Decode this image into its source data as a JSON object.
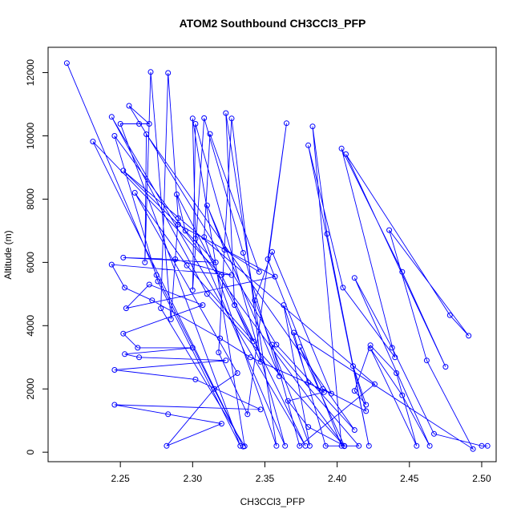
{
  "chart_data": {
    "type": "line",
    "title": "ATOM2 Southbound CH3CCl3_PFP",
    "xlabel": "CH3CCl3_PFP",
    "ylabel": "Altitude (m)",
    "xlim": [
      2.2,
      2.51
    ],
    "ylim": [
      -300,
      12800
    ],
    "xticks": [
      2.25,
      2.3,
      2.35,
      2.4,
      2.45,
      2.5
    ],
    "xtick_labels": [
      "2.25",
      "2.30",
      "2.35",
      "2.40",
      "2.45",
      "2.50"
    ],
    "yticks": [
      0,
      2000,
      4000,
      6000,
      8000,
      10000,
      12000
    ],
    "ytick_labels": [
      "0",
      "2000",
      "4000",
      "6000",
      "8000",
      "10000",
      "12000"
    ],
    "color": "#0000ff",
    "grid": false,
    "points": [
      [
        2.213,
        12300
      ],
      [
        2.275,
        5600
      ],
      [
        2.335,
        180
      ],
      [
        2.231,
        9820
      ],
      [
        2.32,
        5600
      ],
      [
        2.378,
        200
      ],
      [
        2.244,
        10600
      ],
      [
        2.31,
        5000
      ],
      [
        2.405,
        190
      ],
      [
        2.246,
        10000
      ],
      [
        2.276,
        5400
      ],
      [
        2.333,
        200
      ],
      [
        2.25,
        10380
      ],
      [
        2.263,
        10380
      ],
      [
        2.27,
        10380
      ],
      [
        2.256,
        10950
      ],
      [
        2.358,
        3400
      ],
      [
        2.412,
        700
      ],
      [
        2.268,
        10050
      ],
      [
        2.267,
        6000
      ],
      [
        2.271,
        12020
      ],
      [
        2.285,
        4200
      ],
      [
        2.29,
        7400
      ],
      [
        2.283,
        11990
      ],
      [
        2.278,
        4550
      ],
      [
        2.336,
        190
      ],
      [
        2.3,
        10550
      ],
      [
        2.302,
        6750
      ],
      [
        2.364,
        200
      ],
      [
        2.302,
        10380
      ],
      [
        2.3,
        5120
      ],
      [
        2.308,
        10560
      ],
      [
        2.335,
        6300
      ],
      [
        2.36,
        2400
      ],
      [
        2.31,
        7800
      ],
      [
        2.322,
        6400
      ],
      [
        2.346,
        5700
      ],
      [
        2.312,
        10060
      ],
      [
        2.308,
        6800
      ],
      [
        2.358,
        200
      ],
      [
        2.323,
        10720
      ],
      [
        2.329,
        4650
      ],
      [
        2.347,
        2860
      ],
      [
        2.327,
        10550
      ],
      [
        2.318,
        3150
      ],
      [
        2.338,
        1200
      ],
      [
        2.365,
        10400
      ],
      [
        2.352,
        6100
      ],
      [
        2.403,
        200
      ],
      [
        2.383,
        10300
      ],
      [
        2.393,
        6900
      ],
      [
        2.422,
        200
      ],
      [
        2.38,
        9700
      ],
      [
        2.404,
        5200
      ],
      [
        2.44,
        3000
      ],
      [
        2.403,
        9600
      ],
      [
        2.445,
        5700
      ],
      [
        2.475,
        2700
      ],
      [
        2.406,
        9420
      ],
      [
        2.478,
        4330
      ],
      [
        2.491,
        3680
      ],
      [
        2.436,
        7020
      ],
      [
        2.462,
        2900
      ],
      [
        2.494,
        100
      ],
      [
        2.37,
        3780
      ],
      [
        2.392,
        200
      ],
      [
        2.415,
        200
      ],
      [
        2.355,
        3400
      ],
      [
        2.374,
        200
      ],
      [
        2.426,
        2150
      ],
      [
        2.252,
        8900
      ],
      [
        2.29,
        7200
      ],
      [
        2.357,
        5550
      ],
      [
        2.254,
        4550
      ],
      [
        2.27,
        5300
      ],
      [
        2.307,
        4650
      ],
      [
        2.252,
        3750
      ],
      [
        2.262,
        3300
      ],
      [
        2.3,
        3300
      ],
      [
        2.253,
        3100
      ],
      [
        2.263,
        3000
      ],
      [
        2.323,
        2900
      ],
      [
        2.246,
        2600
      ],
      [
        2.302,
        2300
      ],
      [
        2.347,
        1350
      ],
      [
        2.246,
        1500
      ],
      [
        2.283,
        1200
      ],
      [
        2.32,
        900
      ],
      [
        2.282,
        200
      ],
      [
        2.315,
        2000
      ],
      [
        2.331,
        2500
      ],
      [
        2.26,
        8200
      ],
      [
        2.296,
        5900
      ],
      [
        2.342,
        3500
      ],
      [
        2.289,
        8150
      ],
      [
        2.295,
        7000
      ],
      [
        2.316,
        6000
      ],
      [
        2.252,
        6150
      ],
      [
        2.288,
        6100
      ],
      [
        2.327,
        5600
      ],
      [
        2.244,
        5930
      ],
      [
        2.253,
        5200
      ],
      [
        2.272,
        4800
      ],
      [
        2.319,
        3600
      ],
      [
        2.34,
        3000
      ],
      [
        2.396,
        1850
      ],
      [
        2.355,
        6330
      ],
      [
        2.343,
        4800
      ],
      [
        2.381,
        200
      ],
      [
        2.363,
        4650
      ],
      [
        2.38,
        2200
      ],
      [
        2.391,
        1900
      ],
      [
        2.366,
        1620
      ],
      [
        2.38,
        800
      ],
      [
        2.405,
        200
      ],
      [
        2.374,
        3330
      ],
      [
        2.39,
        2000
      ],
      [
        2.42,
        1300
      ],
      [
        2.411,
        2720
      ],
      [
        2.42,
        1500
      ],
      [
        2.412,
        1940
      ],
      [
        2.423,
        3380
      ],
      [
        2.441,
        2500
      ],
      [
        2.455,
        200
      ],
      [
        2.423,
        3280
      ],
      [
        2.445,
        1800
      ],
      [
        2.464,
        200
      ],
      [
        2.412,
        5510
      ],
      [
        2.438,
        3300
      ],
      [
        2.467,
        580
      ],
      [
        2.5,
        200
      ],
      [
        2.504,
        200
      ]
    ]
  }
}
